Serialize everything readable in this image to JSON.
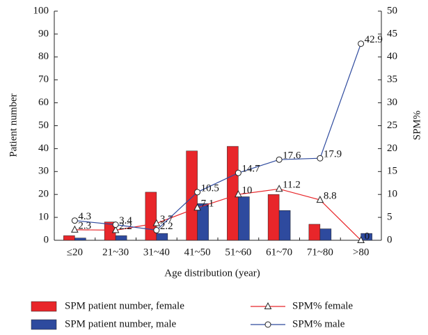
{
  "chart_data": {
    "type": "bar",
    "x_label": "Age distribution (year)",
    "y_label": "Patient number",
    "y2_label": "SPM%",
    "categories": [
      "≤20",
      "21~30",
      "31~40",
      "41~50",
      "51~60",
      "61~70",
      "71~80",
      ">80"
    ],
    "series": [
      {
        "name": "SPM patient number, female",
        "type": "bar",
        "color": "#e8262a",
        "values": [
          2,
          8,
          21,
          39,
          41,
          20,
          7,
          0
        ]
      },
      {
        "name": "SPM patient number, male",
        "type": "bar",
        "color": "#2e4a9e",
        "values": [
          1,
          2,
          3,
          16,
          19,
          13,
          5,
          3
        ]
      },
      {
        "name": "SPM% female",
        "type": "line",
        "marker": "triangle",
        "axis": "y2",
        "color": "#e8262a",
        "values": [
          2.3,
          2.2,
          3.7,
          7.1,
          10,
          11.2,
          8.8,
          0
        ]
      },
      {
        "name": "SPM% male",
        "type": "line",
        "marker": "circle",
        "axis": "y2",
        "color": "#2e4a9e",
        "values": [
          4.3,
          3.4,
          2.2,
          10.5,
          14.7,
          17.6,
          17.9,
          42.9
        ]
      }
    ],
    "ylim": [
      0,
      100
    ],
    "yticks": [
      0,
      10,
      20,
      30,
      40,
      50,
      60,
      70,
      80,
      90,
      100
    ],
    "y2lim": [
      0,
      50
    ],
    "y2ticks": [
      0,
      5,
      10,
      15,
      20,
      25,
      30,
      35,
      40,
      45,
      50
    ]
  }
}
